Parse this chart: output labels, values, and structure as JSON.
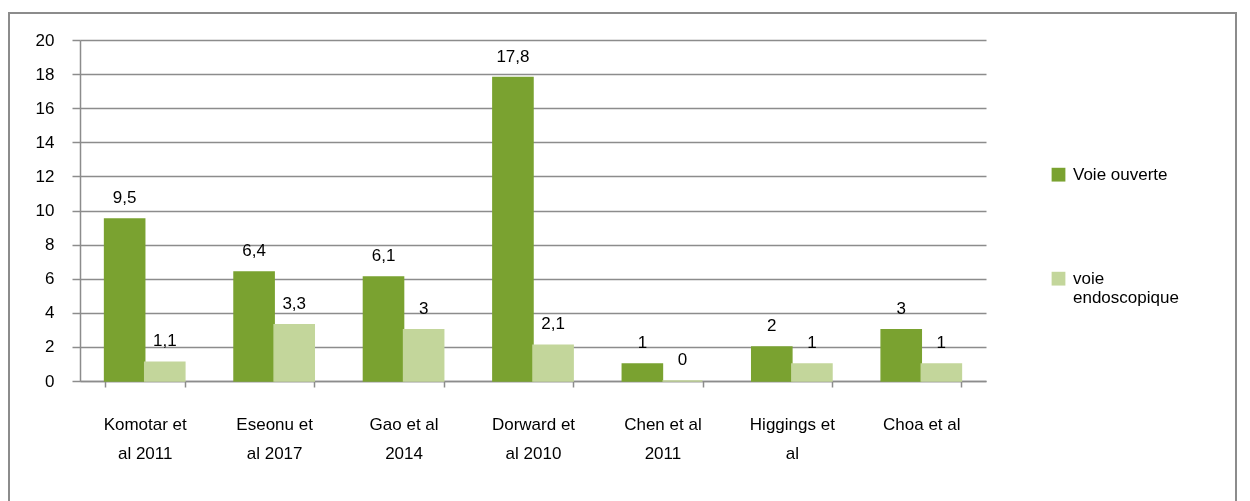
{
  "chart_data": {
    "type": "bar",
    "categories": [
      "Komotar et al 2011",
      "Eseonu et al 2017",
      "Gao et al 2014",
      "Dorward et al 2010",
      "Chen et al 2011",
      "Higgings et al",
      "Choa et al"
    ],
    "series": [
      {
        "name": "Voie ouverte",
        "color": "#7aa230",
        "values": [
          9.5,
          6.4,
          6.1,
          17.8,
          1,
          2,
          3
        ],
        "value_labels": [
          "9,5",
          "6,4",
          "6,1",
          "17,8",
          "1",
          "2",
          "3"
        ]
      },
      {
        "name": "voie endoscopique",
        "color": "#c3d69b",
        "values": [
          1.1,
          3.3,
          3,
          2.1,
          0,
          1,
          1
        ],
        "value_labels": [
          "1,1",
          "3,3",
          "3",
          "2,1",
          "0",
          "1",
          "1"
        ]
      }
    ],
    "ylim": [
      0,
      20
    ],
    "yticks": [
      0,
      2,
      4,
      6,
      8,
      10,
      12,
      14,
      16,
      18,
      20
    ],
    "grid": "y",
    "legend": "right"
  }
}
